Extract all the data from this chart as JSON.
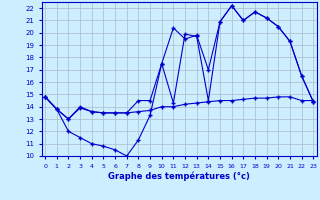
{
  "xlabel": "Graphe des températures (°c)",
  "bg_color": "#cceeff",
  "grid_color": "#aabbcc",
  "line_color": "#0000cc",
  "ylim": [
    10,
    22.5
  ],
  "xlim": [
    -0.3,
    23.3
  ],
  "yticks": [
    10,
    11,
    12,
    13,
    14,
    15,
    16,
    17,
    18,
    19,
    20,
    21,
    22
  ],
  "xticks": [
    0,
    1,
    2,
    3,
    4,
    5,
    6,
    7,
    8,
    9,
    10,
    11,
    12,
    13,
    14,
    15,
    16,
    17,
    18,
    19,
    20,
    21,
    22,
    23
  ],
  "line1_x": [
    0,
    1,
    2,
    3,
    4,
    5,
    6,
    7,
    8,
    9,
    10,
    11,
    12,
    13,
    14,
    15,
    16,
    17,
    18,
    19,
    20,
    21,
    22,
    23
  ],
  "line1_y": [
    14.8,
    13.8,
    13.0,
    13.9,
    13.6,
    13.5,
    13.5,
    13.5,
    13.6,
    13.7,
    14.0,
    14.0,
    14.2,
    14.3,
    14.4,
    14.5,
    14.5,
    14.6,
    14.7,
    14.7,
    14.8,
    14.8,
    14.5,
    14.5
  ],
  "line2_x": [
    0,
    1,
    2,
    3,
    4,
    5,
    6,
    7,
    8,
    9,
    10,
    11,
    12,
    13,
    14,
    15,
    16,
    17,
    18,
    19,
    20,
    21,
    22,
    23
  ],
  "line2_y": [
    14.8,
    13.8,
    12.0,
    11.5,
    11.0,
    10.8,
    10.5,
    10.0,
    11.3,
    13.3,
    17.5,
    14.3,
    19.9,
    19.7,
    14.5,
    20.9,
    22.2,
    21.0,
    21.7,
    21.2,
    20.5,
    19.3,
    16.5,
    14.4
  ],
  "line3_x": [
    0,
    1,
    2,
    3,
    4,
    5,
    6,
    7,
    8,
    9,
    10,
    11,
    12,
    13,
    14,
    15,
    16,
    17,
    18,
    19,
    20,
    21,
    22,
    23
  ],
  "line3_y": [
    14.8,
    13.8,
    13.0,
    14.0,
    13.6,
    13.5,
    13.5,
    13.5,
    14.5,
    14.5,
    17.5,
    20.4,
    19.5,
    19.8,
    17.0,
    20.9,
    22.2,
    21.0,
    21.7,
    21.2,
    20.5,
    19.3,
    16.5,
    14.4
  ]
}
